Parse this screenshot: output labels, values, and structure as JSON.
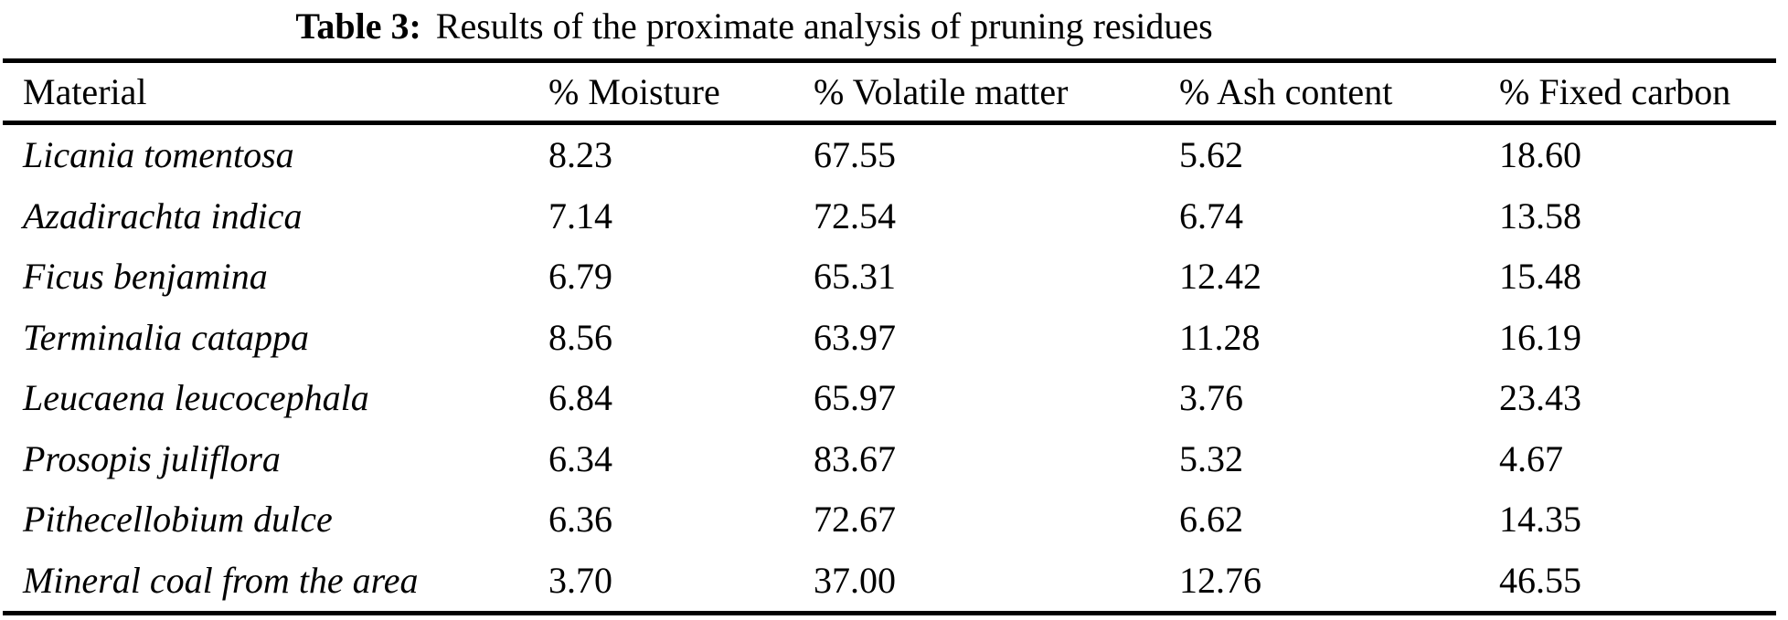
{
  "title": {
    "label": "Table 3:",
    "text": "Results of the proximate analysis of pruning residues"
  },
  "table": {
    "columns": {
      "material": "Material",
      "moisture": "% Moisture",
      "volatile": "% Volatile matter",
      "ash": "% Ash content",
      "fixed": "% Fixed carbon"
    },
    "rows": [
      {
        "material": "Licania tomentosa",
        "moisture": "8.23",
        "volatile": "67.55",
        "ash": "5.62",
        "fixed": "18.60"
      },
      {
        "material": "Azadirachta indica",
        "moisture": "7.14",
        "volatile": "72.54",
        "ash": "6.74",
        "fixed": "13.58"
      },
      {
        "material": "Ficus benjamina",
        "moisture": "6.79",
        "volatile": "65.31",
        "ash": "12.42",
        "fixed": "15.48"
      },
      {
        "material": "Terminalia catappa",
        "moisture": "8.56",
        "volatile": "63.97",
        "ash": "11.28",
        "fixed": "16.19"
      },
      {
        "material": "Leucaena leucocephala",
        "moisture": "6.84",
        "volatile": "65.97",
        "ash": "3.76",
        "fixed": "23.43"
      },
      {
        "material": "Prosopis juliflora",
        "moisture": "6.34",
        "volatile": "83.67",
        "ash": "5.32",
        "fixed": "4.67"
      },
      {
        "material": "Pithecellobium dulce",
        "moisture": "6.36",
        "volatile": "72.67",
        "ash": "6.62",
        "fixed": "14.35"
      },
      {
        "material": "Mineral coal from the area",
        "moisture": "3.70",
        "volatile": "37.00",
        "ash": "12.76",
        "fixed": "46.55"
      }
    ]
  },
  "colors": {
    "text": "#000000",
    "background": "#ffffff",
    "rule": "#000000"
  }
}
